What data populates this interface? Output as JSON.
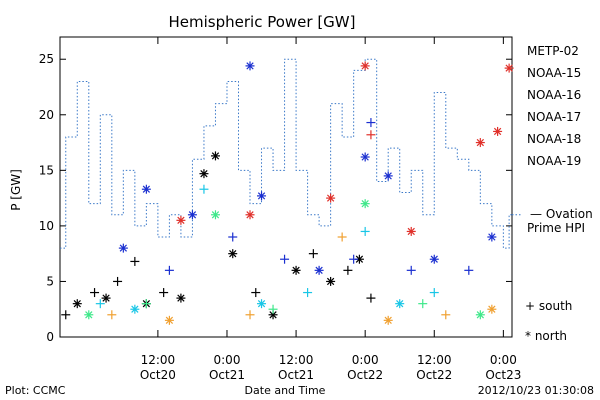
{
  "footer": {
    "left": "Plot: CCMC",
    "center": "Date and Time",
    "right": "2012/10/23 01:30:08"
  },
  "legend": {
    "symbols": [
      "+ south",
      "* north"
    ]
  },
  "colors": {
    "METP-02": "#000000",
    "NOAA-15": "#1a2fd0",
    "NOAA-16": "#19c6e6",
    "NOAA-17": "#3ee88a",
    "NOAA-18": "#f0a030",
    "NOAA-19": "#e0302a",
    "ovation": "#3a78c8"
  },
  "chart_data": {
    "type": "scatter",
    "title": "Hemispheric Power [GW]",
    "xlabel": "Date and Time",
    "ylabel": "P [GW]",
    "ylim": [
      0,
      27
    ],
    "yticks": [
      0,
      5,
      10,
      15,
      20,
      25
    ],
    "xlim": [
      "2012-10-19 19:00",
      "2012-10-23 01:30"
    ],
    "xticks": [
      {
        "time": "2012-10-20 12:00",
        "label1": "12:00",
        "label2": "Oct20"
      },
      {
        "time": "2012-10-21 00:00",
        "label1": "0:00",
        "label2": "Oct21"
      },
      {
        "time": "2012-10-21 12:00",
        "label1": "12:00",
        "label2": "Oct21"
      },
      {
        "time": "2012-10-22 00:00",
        "label1": "0:00",
        "label2": "Oct22"
      },
      {
        "time": "2012-10-22 12:00",
        "label1": "12:00",
        "label2": "Oct22"
      },
      {
        "time": "2012-10-23 00:00",
        "label1": "0:00",
        "label2": "Oct23"
      }
    ],
    "grid": false,
    "legend_position": "right",
    "series": [
      {
        "name": "METP-02",
        "type": "scatter",
        "points": [
          {
            "x": "2012-10-19 20:00",
            "y": 2,
            "hemi": "south"
          },
          {
            "x": "2012-10-19 22:00",
            "y": 3,
            "hemi": "north"
          },
          {
            "x": "2012-10-20 01:00",
            "y": 4,
            "hemi": "south"
          },
          {
            "x": "2012-10-20 03:00",
            "y": 3.5,
            "hemi": "north"
          },
          {
            "x": "2012-10-20 05:00",
            "y": 5,
            "hemi": "south"
          },
          {
            "x": "2012-10-20 08:00",
            "y": 6.8,
            "hemi": "south"
          },
          {
            "x": "2012-10-20 10:00",
            "y": 3,
            "hemi": "north"
          },
          {
            "x": "2012-10-20 13:00",
            "y": 4,
            "hemi": "south"
          },
          {
            "x": "2012-10-20 16:00",
            "y": 3.5,
            "hemi": "north"
          },
          {
            "x": "2012-10-20 20:00",
            "y": 14.7,
            "hemi": "north"
          },
          {
            "x": "2012-10-20 22:00",
            "y": 16.3,
            "hemi": "north"
          },
          {
            "x": "2012-10-21 01:00",
            "y": 7.5,
            "hemi": "north"
          },
          {
            "x": "2012-10-21 05:00",
            "y": 4,
            "hemi": "south"
          },
          {
            "x": "2012-10-21 08:00",
            "y": 2,
            "hemi": "north"
          },
          {
            "x": "2012-10-21 12:00",
            "y": 6,
            "hemi": "north"
          },
          {
            "x": "2012-10-21 15:00",
            "y": 7.5,
            "hemi": "south"
          },
          {
            "x": "2012-10-21 18:00",
            "y": 5,
            "hemi": "north"
          },
          {
            "x": "2012-10-21 21:00",
            "y": 6,
            "hemi": "south"
          },
          {
            "x": "2012-10-21 23:00",
            "y": 7,
            "hemi": "north"
          },
          {
            "x": "2012-10-22 01:00",
            "y": 3.5,
            "hemi": "south"
          }
        ]
      },
      {
        "name": "NOAA-15",
        "type": "scatter",
        "points": [
          {
            "x": "2012-10-20 06:00",
            "y": 8,
            "hemi": "north"
          },
          {
            "x": "2012-10-20 10:00",
            "y": 13.3,
            "hemi": "north"
          },
          {
            "x": "2012-10-20 14:00",
            "y": 6,
            "hemi": "south"
          },
          {
            "x": "2012-10-20 18:00",
            "y": 11,
            "hemi": "north"
          },
          {
            "x": "2012-10-21 01:00",
            "y": 9,
            "hemi": "south"
          },
          {
            "x": "2012-10-21 04:00",
            "y": 24.4,
            "hemi": "north"
          },
          {
            "x": "2012-10-21 06:00",
            "y": 12.7,
            "hemi": "north"
          },
          {
            "x": "2012-10-21 10:00",
            "y": 7,
            "hemi": "south"
          },
          {
            "x": "2012-10-21 16:00",
            "y": 6,
            "hemi": "north"
          },
          {
            "x": "2012-10-21 22:00",
            "y": 7,
            "hemi": "south"
          },
          {
            "x": "2012-10-22 00:00",
            "y": 16.2,
            "hemi": "north"
          },
          {
            "x": "2012-10-22 01:00",
            "y": 19.3,
            "hemi": "south"
          },
          {
            "x": "2012-10-22 04:00",
            "y": 14.5,
            "hemi": "north"
          },
          {
            "x": "2012-10-22 08:00",
            "y": 6,
            "hemi": "south"
          },
          {
            "x": "2012-10-22 12:00",
            "y": 7,
            "hemi": "north"
          },
          {
            "x": "2012-10-22 18:00",
            "y": 6,
            "hemi": "south"
          },
          {
            "x": "2012-10-22 22:00",
            "y": 9,
            "hemi": "north"
          }
        ]
      },
      {
        "name": "NOAA-16",
        "type": "scatter",
        "points": [
          {
            "x": "2012-10-20 02:00",
            "y": 3,
            "hemi": "south"
          },
          {
            "x": "2012-10-20 08:00",
            "y": 2.5,
            "hemi": "north"
          },
          {
            "x": "2012-10-20 20:00",
            "y": 13.3,
            "hemi": "south"
          },
          {
            "x": "2012-10-21 06:00",
            "y": 3,
            "hemi": "north"
          },
          {
            "x": "2012-10-21 14:00",
            "y": 4,
            "hemi": "south"
          },
          {
            "x": "2012-10-22 00:00",
            "y": 9.5,
            "hemi": "south"
          },
          {
            "x": "2012-10-22 06:00",
            "y": 3,
            "hemi": "north"
          },
          {
            "x": "2012-10-22 12:00",
            "y": 4,
            "hemi": "south"
          }
        ]
      },
      {
        "name": "NOAA-17",
        "type": "scatter",
        "points": [
          {
            "x": "2012-10-20 00:00",
            "y": 2,
            "hemi": "north"
          },
          {
            "x": "2012-10-20 10:00",
            "y": 3,
            "hemi": "south"
          },
          {
            "x": "2012-10-20 22:00",
            "y": 11,
            "hemi": "north"
          },
          {
            "x": "2012-10-21 08:00",
            "y": 2.5,
            "hemi": "south"
          },
          {
            "x": "2012-10-22 00:00",
            "y": 12,
            "hemi": "north"
          },
          {
            "x": "2012-10-22 10:00",
            "y": 3,
            "hemi": "south"
          },
          {
            "x": "2012-10-22 20:00",
            "y": 2,
            "hemi": "north"
          }
        ]
      },
      {
        "name": "NOAA-18",
        "type": "scatter",
        "points": [
          {
            "x": "2012-10-20 04:00",
            "y": 2,
            "hemi": "south"
          },
          {
            "x": "2012-10-20 14:00",
            "y": 1.5,
            "hemi": "north"
          },
          {
            "x": "2012-10-21 04:00",
            "y": 2,
            "hemi": "south"
          },
          {
            "x": "2012-10-21 20:00",
            "y": 9,
            "hemi": "south"
          },
          {
            "x": "2012-10-22 04:00",
            "y": 1.5,
            "hemi": "north"
          },
          {
            "x": "2012-10-22 14:00",
            "y": 2,
            "hemi": "south"
          },
          {
            "x": "2012-10-22 22:00",
            "y": 2.5,
            "hemi": "north"
          }
        ]
      },
      {
        "name": "NOAA-19",
        "type": "scatter",
        "points": [
          {
            "x": "2012-10-20 16:00",
            "y": 10.5,
            "hemi": "north"
          },
          {
            "x": "2012-10-21 04:00",
            "y": 11,
            "hemi": "north"
          },
          {
            "x": "2012-10-21 18:00",
            "y": 12.5,
            "hemi": "north"
          },
          {
            "x": "2012-10-22 00:00",
            "y": 24.4,
            "hemi": "north"
          },
          {
            "x": "2012-10-22 01:00",
            "y": 18.2,
            "hemi": "south"
          },
          {
            "x": "2012-10-22 08:00",
            "y": 9.5,
            "hemi": "north"
          },
          {
            "x": "2012-10-22 20:00",
            "y": 17.5,
            "hemi": "north"
          },
          {
            "x": "2012-10-22 23:00",
            "y": 18.5,
            "hemi": "north"
          },
          {
            "x": "2012-10-23 01:00",
            "y": 24.2,
            "hemi": "north"
          }
        ]
      },
      {
        "name": "Ovation Prime HPI",
        "type": "step",
        "points": [
          {
            "x": "2012-10-19 19:00",
            "y": 8
          },
          {
            "x": "2012-10-19 20:00",
            "y": 18
          },
          {
            "x": "2012-10-19 22:00",
            "y": 23
          },
          {
            "x": "2012-10-20 00:00",
            "y": 12
          },
          {
            "x": "2012-10-20 02:00",
            "y": 20
          },
          {
            "x": "2012-10-20 04:00",
            "y": 11
          },
          {
            "x": "2012-10-20 06:00",
            "y": 15
          },
          {
            "x": "2012-10-20 08:00",
            "y": 10
          },
          {
            "x": "2012-10-20 10:00",
            "y": 12
          },
          {
            "x": "2012-10-20 12:00",
            "y": 9
          },
          {
            "x": "2012-10-20 14:00",
            "y": 11
          },
          {
            "x": "2012-10-20 16:00",
            "y": 9
          },
          {
            "x": "2012-10-20 18:00",
            "y": 16
          },
          {
            "x": "2012-10-20 20:00",
            "y": 19
          },
          {
            "x": "2012-10-20 22:00",
            "y": 21
          },
          {
            "x": "2012-10-21 00:00",
            "y": 23
          },
          {
            "x": "2012-10-21 02:00",
            "y": 15
          },
          {
            "x": "2012-10-21 04:00",
            "y": 12
          },
          {
            "x": "2012-10-21 06:00",
            "y": 17
          },
          {
            "x": "2012-10-21 08:00",
            "y": 15
          },
          {
            "x": "2012-10-21 10:00",
            "y": 25
          },
          {
            "x": "2012-10-21 12:00",
            "y": 15
          },
          {
            "x": "2012-10-21 14:00",
            "y": 11
          },
          {
            "x": "2012-10-21 16:00",
            "y": 10
          },
          {
            "x": "2012-10-21 18:00",
            "y": 21
          },
          {
            "x": "2012-10-21 20:00",
            "y": 18
          },
          {
            "x": "2012-10-21 22:00",
            "y": 24
          },
          {
            "x": "2012-10-22 00:00",
            "y": 25
          },
          {
            "x": "2012-10-22 02:00",
            "y": 14
          },
          {
            "x": "2012-10-22 04:00",
            "y": 17
          },
          {
            "x": "2012-10-22 06:00",
            "y": 13
          },
          {
            "x": "2012-10-22 08:00",
            "y": 15
          },
          {
            "x": "2012-10-22 10:00",
            "y": 11
          },
          {
            "x": "2012-10-22 12:00",
            "y": 22
          },
          {
            "x": "2012-10-22 14:00",
            "y": 17
          },
          {
            "x": "2012-10-22 16:00",
            "y": 16
          },
          {
            "x": "2012-10-22 18:00",
            "y": 15
          },
          {
            "x": "2012-10-22 20:00",
            "y": 12
          },
          {
            "x": "2012-10-22 22:00",
            "y": 10
          },
          {
            "x": "2012-10-23 00:00",
            "y": 8
          },
          {
            "x": "2012-10-23 01:00",
            "y": 11
          },
          {
            "x": "2012-10-23 01:30",
            "y": 11
          }
        ]
      }
    ]
  }
}
